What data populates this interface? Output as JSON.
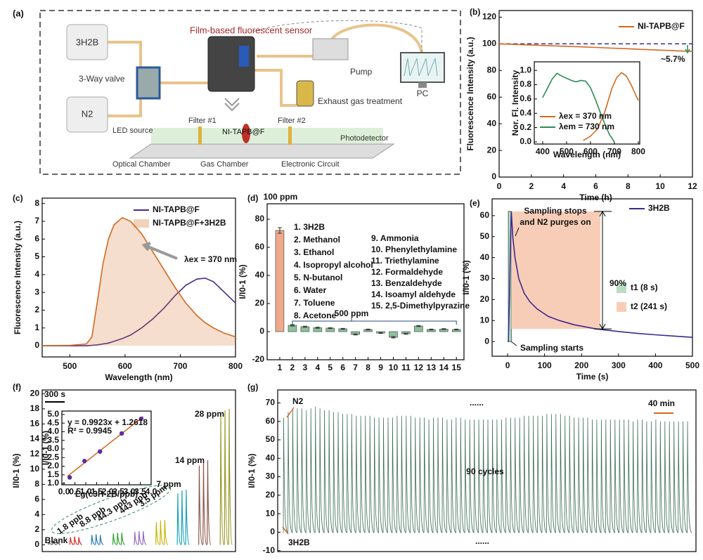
{
  "diagram": {
    "panel": "(a)",
    "title": "Film-based fluorescent sensor",
    "bag_top": "3H2B",
    "bag_bottom": "N2",
    "valve": "3-Way valve",
    "pump": "Pump",
    "pc": "PC",
    "exhaust": "Exhaust gas treatment",
    "led": "LED source",
    "filter_1": "Filter #1",
    "film": "NI-TAPB@F",
    "filter_2": "Filter #2",
    "detector": "Photodetector",
    "optical": "Optical Chamber",
    "gas": "Gas Chamber",
    "circuit": "Electronic Circuit"
  },
  "chart_data": [
    {
      "panel": "(b)",
      "type": "line",
      "xlabel": "Time (h)",
      "ylabel": "Fluorescence Intensity (a.u.)",
      "xlim": [
        0,
        12
      ],
      "xticks": [
        0,
        2,
        4,
        6,
        8,
        10,
        12
      ],
      "ylim": [
        0,
        125
      ],
      "yticks": [
        0,
        20,
        40,
        60,
        80,
        100,
        120
      ],
      "x": [
        0,
        1,
        2,
        3,
        4,
        5,
        6,
        7,
        8,
        9,
        10,
        11,
        12
      ],
      "series": [
        {
          "name": "NI-TAPB@F",
          "color": "#d2691e",
          "values": [
            100,
            99.6,
            99.1,
            98.7,
            98.2,
            97.8,
            97.3,
            96.8,
            96.3,
            95.8,
            95.3,
            94.8,
            94.3
          ]
        }
      ],
      "reference_y": 100,
      "reference_color": "#3a2a8c",
      "annotations": [
        "~5.7%"
      ],
      "annotation_colors": [
        "#3a2a8c"
      ]
    },
    {
      "type": "line",
      "xlabel": "Wavelength (nm)",
      "ylabel": "Nor. Fl. Intensity",
      "xlim": [
        365,
        806
      ],
      "xticks": [
        400,
        500,
        600,
        700,
        800
      ],
      "ylim": [
        -0.03,
        1.12
      ],
      "yticks": [
        {
          "value": 0,
          "label": "0.0"
        },
        {
          "value": 0.2,
          "label": "0.2"
        },
        {
          "value": 0.4,
          "label": "0.4"
        },
        {
          "value": 0.6,
          "label": "0.6"
        },
        {
          "value": 0.8,
          "label": "0.8"
        },
        {
          "value": 1,
          "label": "1.0"
        }
      ],
      "series": [
        {
          "name": "λex = 370 nm",
          "color": "#d2691e",
          "x": [
            570,
            600,
            630,
            660,
            690,
            710,
            730,
            750,
            770,
            790,
            800
          ],
          "values": [
            0.02,
            0.08,
            0.18,
            0.42,
            0.75,
            0.9,
            0.97,
            0.92,
            0.8,
            0.65,
            0.58
          ]
        },
        {
          "name": "λem = 730 nm",
          "color": "#2e8b57",
          "x": [
            400,
            420,
            440,
            460,
            480,
            500,
            520,
            540,
            560,
            580,
            600,
            620,
            640,
            660,
            680,
            700
          ],
          "values": [
            0.62,
            0.75,
            0.88,
            0.96,
            0.92,
            0.89,
            0.86,
            0.84,
            0.86,
            0.85,
            0.76,
            0.6,
            0.42,
            0.25,
            0.1,
            0
          ]
        }
      ]
    },
    {
      "panel": "(c)",
      "type": "line",
      "xlabel": "Wavelength (nm)",
      "ylabel": "Fluorescence Intensity (a.u.)",
      "xlim": [
        450,
        800
      ],
      "xticks": [
        500,
        600,
        700,
        800
      ],
      "ylim": [
        -0.63,
        8.3
      ],
      "yticks": [
        0,
        1,
        2,
        3,
        4,
        5,
        6,
        7,
        8
      ],
      "x": [
        450,
        500,
        530,
        540,
        550,
        560,
        570,
        580,
        595,
        610,
        630,
        650,
        670,
        690,
        710,
        730,
        745,
        760,
        780,
        800
      ],
      "series": [
        {
          "name": "NI-TAPB@F",
          "color": "#4b2a8c",
          "values": [
            0,
            0,
            0,
            0.02,
            0.05,
            0.1,
            0.15,
            0.25,
            0.4,
            0.6,
            1.0,
            1.5,
            2.1,
            2.8,
            3.4,
            3.75,
            3.8,
            3.6,
            3.0,
            2.4
          ]
        },
        {
          "name": "NI-TAPB@F+3H2B",
          "color": "#d2691e",
          "fill": true,
          "values": [
            0,
            0.02,
            0.1,
            0.5,
            2.5,
            4.6,
            6.0,
            6.8,
            7.2,
            7.0,
            6.3,
            5.3,
            4.3,
            3.3,
            2.4,
            1.7,
            1.3,
            1.0,
            0.7,
            0.5
          ]
        }
      ],
      "annotations": [
        "λex = 370 nm"
      ],
      "annotation_colors": [
        "#111111"
      ]
    },
    {
      "panel": "(d)",
      "type": "bar",
      "ylabel": "I/I0-1 (%)",
      "ylim": [
        -20,
        91
      ],
      "yticks": [
        -20,
        0,
        20,
        40,
        60,
        80
      ],
      "categories": [
        "1",
        "2",
        "3",
        "4",
        "5",
        "6",
        "7",
        "8",
        "9",
        "10",
        "11",
        "12",
        "13",
        "14",
        "15"
      ],
      "values": [
        72,
        4.5,
        3.5,
        2.8,
        2.5,
        2,
        -2,
        1.5,
        -1,
        -4,
        -1.5,
        4,
        1.5,
        1.8,
        1.5
      ],
      "errors": [
        2,
        0.5,
        0.4,
        0.4,
        0.3,
        0.3,
        0.4,
        0.3,
        0.3,
        0.5,
        0.3,
        0.4,
        0.3,
        0.3,
        0.3
      ],
      "colors": [
        "#f2a88c",
        "#8fbf9c",
        "#8fbf9c",
        "#8fbf9c",
        "#8fbf9c",
        "#8fbf9c",
        "#8fbf9c",
        "#8fbf9c",
        "#8fbf9c",
        "#8fbf9c",
        "#8fbf9c",
        "#8fbf9c",
        "#8fbf9c",
        "#8fbf9c",
        "#8fbf9c"
      ],
      "category_names": [
        "1. 3H2B",
        "2. Methanol",
        "3. Ethanol",
        "4. Isopropyl alcohol",
        "5. N-butanol",
        "6. Water",
        "7. Toluene",
        "8. Acetone",
        "9.  Ammonia",
        "10. Phenylethylamine",
        "11. Triethylamine",
        "12. Formaldehyde",
        "13. Benzaldehyde",
        "14. Isoamyl aldehyde",
        "15. 2,5-Dimethylpyrazine"
      ],
      "category_name_colors": [
        "#b22222",
        "#111111",
        "#111111",
        "#111111",
        "#111111",
        "#111111",
        "#111111",
        "#111111",
        "#111111",
        "#111111",
        "#111111",
        "#111111",
        "#111111",
        "#111111",
        "#111111"
      ],
      "annotations": [
        "100 ppm",
        "500 ppm"
      ],
      "annotation_colors": [
        "#2a4a7c",
        "#2a4a7c"
      ]
    },
    {
      "panel": "(e)",
      "type": "line",
      "xlabel": "Time (s)",
      "ylabel": "I/I0-1 (%)",
      "xlim": [
        -42,
        500
      ],
      "xticks": [
        0,
        100,
        200,
        300,
        400,
        500
      ],
      "ylim": [
        -7,
        68
      ],
      "yticks": [
        0,
        10,
        20,
        30,
        40,
        50,
        60
      ],
      "x": [
        0,
        2,
        5,
        8,
        10,
        14,
        20,
        30,
        45,
        60,
        80,
        110,
        140,
        180,
        240,
        300,
        350,
        400,
        450,
        500
      ],
      "series": [
        {
          "name": "3H2B",
          "color": "#3a2a8c",
          "values": [
            0,
            0,
            20,
            50,
            62,
            50,
            40,
            30,
            23,
            19,
            15.5,
            12,
            10,
            8,
            6,
            4.8,
            3.9,
            3.2,
            2.6,
            2
          ]
        }
      ],
      "regions": [
        {
          "name": "t1 (8 s)",
          "color": "#b8dcc4",
          "x": [
            2,
            10
          ],
          "y": [
            0,
            62
          ]
        },
        {
          "name": "t2 (241 s)",
          "color": "#f8cdb8",
          "x": [
            10,
            251
          ],
          "y": [
            6,
            62
          ]
        }
      ],
      "annotations": [
        "Sampling stops",
        "and N2 purges on",
        "Sampling starts",
        "90%"
      ],
      "annotation_colors": [
        "#3a2a8c",
        "#3a2a8c",
        "#3a2a8c",
        "#111111"
      ]
    },
    {
      "panel": "(f)",
      "type": "spikes",
      "ylabel": "I/I0-1 (%)",
      "ylim": [
        -0.9,
        20.5
      ],
      "yticks": [
        0,
        2,
        4,
        6,
        8,
        10,
        12,
        14,
        16,
        18,
        20
      ],
      "series": [
        {
          "name": "Blank",
          "color": "#555555",
          "values": [
            0.3,
            0.4,
            0.3
          ]
        },
        {
          "name": "1.8 ppb",
          "color": "#d62728",
          "values": [
            1.0,
            1.1,
            1.0
          ]
        },
        {
          "name": "8.8 ppb",
          "color": "#1f77b4",
          "values": [
            1.3,
            1.4,
            1.3
          ]
        },
        {
          "name": "44.3 ppb",
          "color": "#2ca02c",
          "values": [
            1.5,
            1.6,
            1.6
          ]
        },
        {
          "name": "443 ppb",
          "color": "#9467bd",
          "values": [
            1.7,
            1.8,
            1.8
          ]
        },
        {
          "name": "3.5 ppm",
          "color": "#c8b400",
          "values": [
            3.0,
            3.2,
            3.3
          ]
        },
        {
          "name": "7 ppm",
          "color": "#17a2b8",
          "values": [
            6.8,
            7.2,
            7.3
          ]
        },
        {
          "name": "14 ppm",
          "color": "#8c564b",
          "values": [
            10.5,
            11,
            11.2
          ]
        },
        {
          "name": "28 ppm",
          "color": "#9a9a2a",
          "values": [
            17,
            17.8,
            18
          ]
        }
      ],
      "annotations": [
        "300 s"
      ],
      "annotation_colors": [
        "#111111"
      ]
    },
    {
      "type": "scatter",
      "xlabel": "Lg(c3H-2B/ppb)",
      "ylabel": "I/I0-1 (%)",
      "xlim": [
        -0.1,
        4.0
      ],
      "xticks": [
        {
          "value": 0,
          "label": "0.0"
        },
        0.5,
        {
          "value": 1,
          "label": "1.0"
        },
        1.5,
        {
          "value": 2,
          "label": "2.0"
        },
        2.5,
        {
          "value": 3,
          "label": "3.0"
        },
        3.5,
        {
          "value": 4,
          "label": "4.0"
        }
      ],
      "ylim": [
        0.92,
        5.2
      ],
      "yticks": [
        {
          "value": 1,
          "label": "1.0"
        },
        1.5,
        {
          "value": 2,
          "label": "2.0"
        },
        2.5,
        {
          "value": 3,
          "label": "3.0"
        },
        3.5,
        {
          "value": 4,
          "label": "4.0"
        },
        4.5,
        {
          "value": 5,
          "label": "5.0"
        }
      ],
      "x": [
        0.26,
        0.94,
        1.65,
        2.65,
        3.54
      ],
      "values": [
        1.35,
        2.3,
        2.85,
        3.9,
        4.75
      ],
      "color": "#5b2ca0",
      "fit": {
        "slope": 0.9923,
        "intercept": 1.2618,
        "color": "#d2691e"
      },
      "annotations": [
        "y = 0.9923x + 1.2618",
        "R² = 0.9945"
      ],
      "annotation_colors": [
        "#2e8b57",
        "#2e8b57"
      ]
    },
    {
      "panel": "(g)",
      "type": "cycles",
      "ylabel": "I/I0-1 (%)",
      "ylim": [
        -10.5,
        77
      ],
      "yticks": [
        -10,
        0,
        10,
        20,
        30,
        40,
        50,
        60,
        70
      ],
      "color": "#3f6e5a",
      "values": [
        62,
        65,
        66,
        67,
        67,
        66,
        67,
        68,
        67,
        66,
        66,
        65,
        65,
        64,
        64,
        64,
        63,
        63,
        63,
        63,
        62,
        62,
        62,
        62,
        62,
        63,
        63,
        63,
        63,
        62,
        62,
        62,
        61,
        62,
        62,
        62,
        61,
        61,
        62,
        62,
        61,
        61,
        61,
        61,
        61,
        61,
        61,
        61,
        61,
        62,
        62,
        62,
        62,
        63,
        63,
        63,
        63,
        63,
        64,
        64,
        64,
        64,
        63,
        63,
        62,
        62,
        62,
        62,
        61,
        61,
        61,
        61,
        61,
        61,
        61,
        61,
        61,
        60,
        61,
        61,
        60,
        60,
        61,
        60,
        60,
        60,
        60,
        60,
        60,
        60
      ],
      "annotations": [
        "N2",
        "3H2B",
        "......",
        "......",
        "40 min",
        "90 cycles"
      ],
      "annotation_colors": [
        "#d2691e",
        "#d2691e",
        "#d2691e",
        "#d2691e",
        "#d2691e",
        "#4b2a8c"
      ]
    }
  ]
}
